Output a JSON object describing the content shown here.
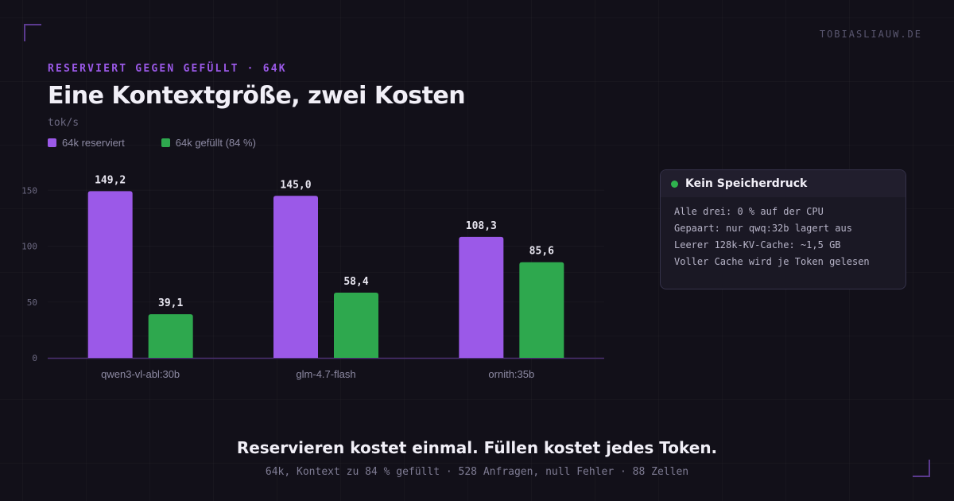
{
  "brand": "TOBIASLIAUW.DE",
  "eyebrow": "RESERVIERT GEGEN GEFÜLLT · 64K",
  "title": "Eine Kontextgröße, zwei Kosten",
  "chart_data": {
    "type": "bar",
    "ylabel": "tok/s",
    "ylim": [
      0,
      160
    ],
    "yticks": [
      0,
      50,
      100,
      150
    ],
    "grid": false,
    "legend_position": "top-left",
    "categories": [
      "qwen3-vl-abl:30b",
      "glm-4.7-flash",
      "ornith:35b"
    ],
    "series": [
      {
        "name": "64k reserviert",
        "color": "#9b59e8",
        "values": [
          149.2,
          145.0,
          108.3
        ],
        "labels": [
          "149,2",
          "145,0",
          "108,3"
        ]
      },
      {
        "name": "64k gefüllt (84 %)",
        "color": "#2ea84e",
        "values": [
          39.1,
          58.4,
          85.6
        ],
        "labels": [
          "39,1",
          "58,4",
          "85,6"
        ]
      }
    ]
  },
  "card": {
    "title": "Kein Speicherdruck",
    "status_color": "#2fb34e",
    "lines": [
      "Alle drei: 0 % auf der CPU",
      "Gepaart: nur qwq:32b lagert aus",
      "Leerer 128k-KV-Cache: ~1,5 GB",
      "Voller Cache wird je Token gelesen"
    ]
  },
  "footer": {
    "headline": "Reservieren kostet einmal. Füllen kostet jedes Token.",
    "subline": "64k, Kontext zu 84 % gefüllt · 528 Anfragen, null Fehler · 88 Zellen"
  }
}
